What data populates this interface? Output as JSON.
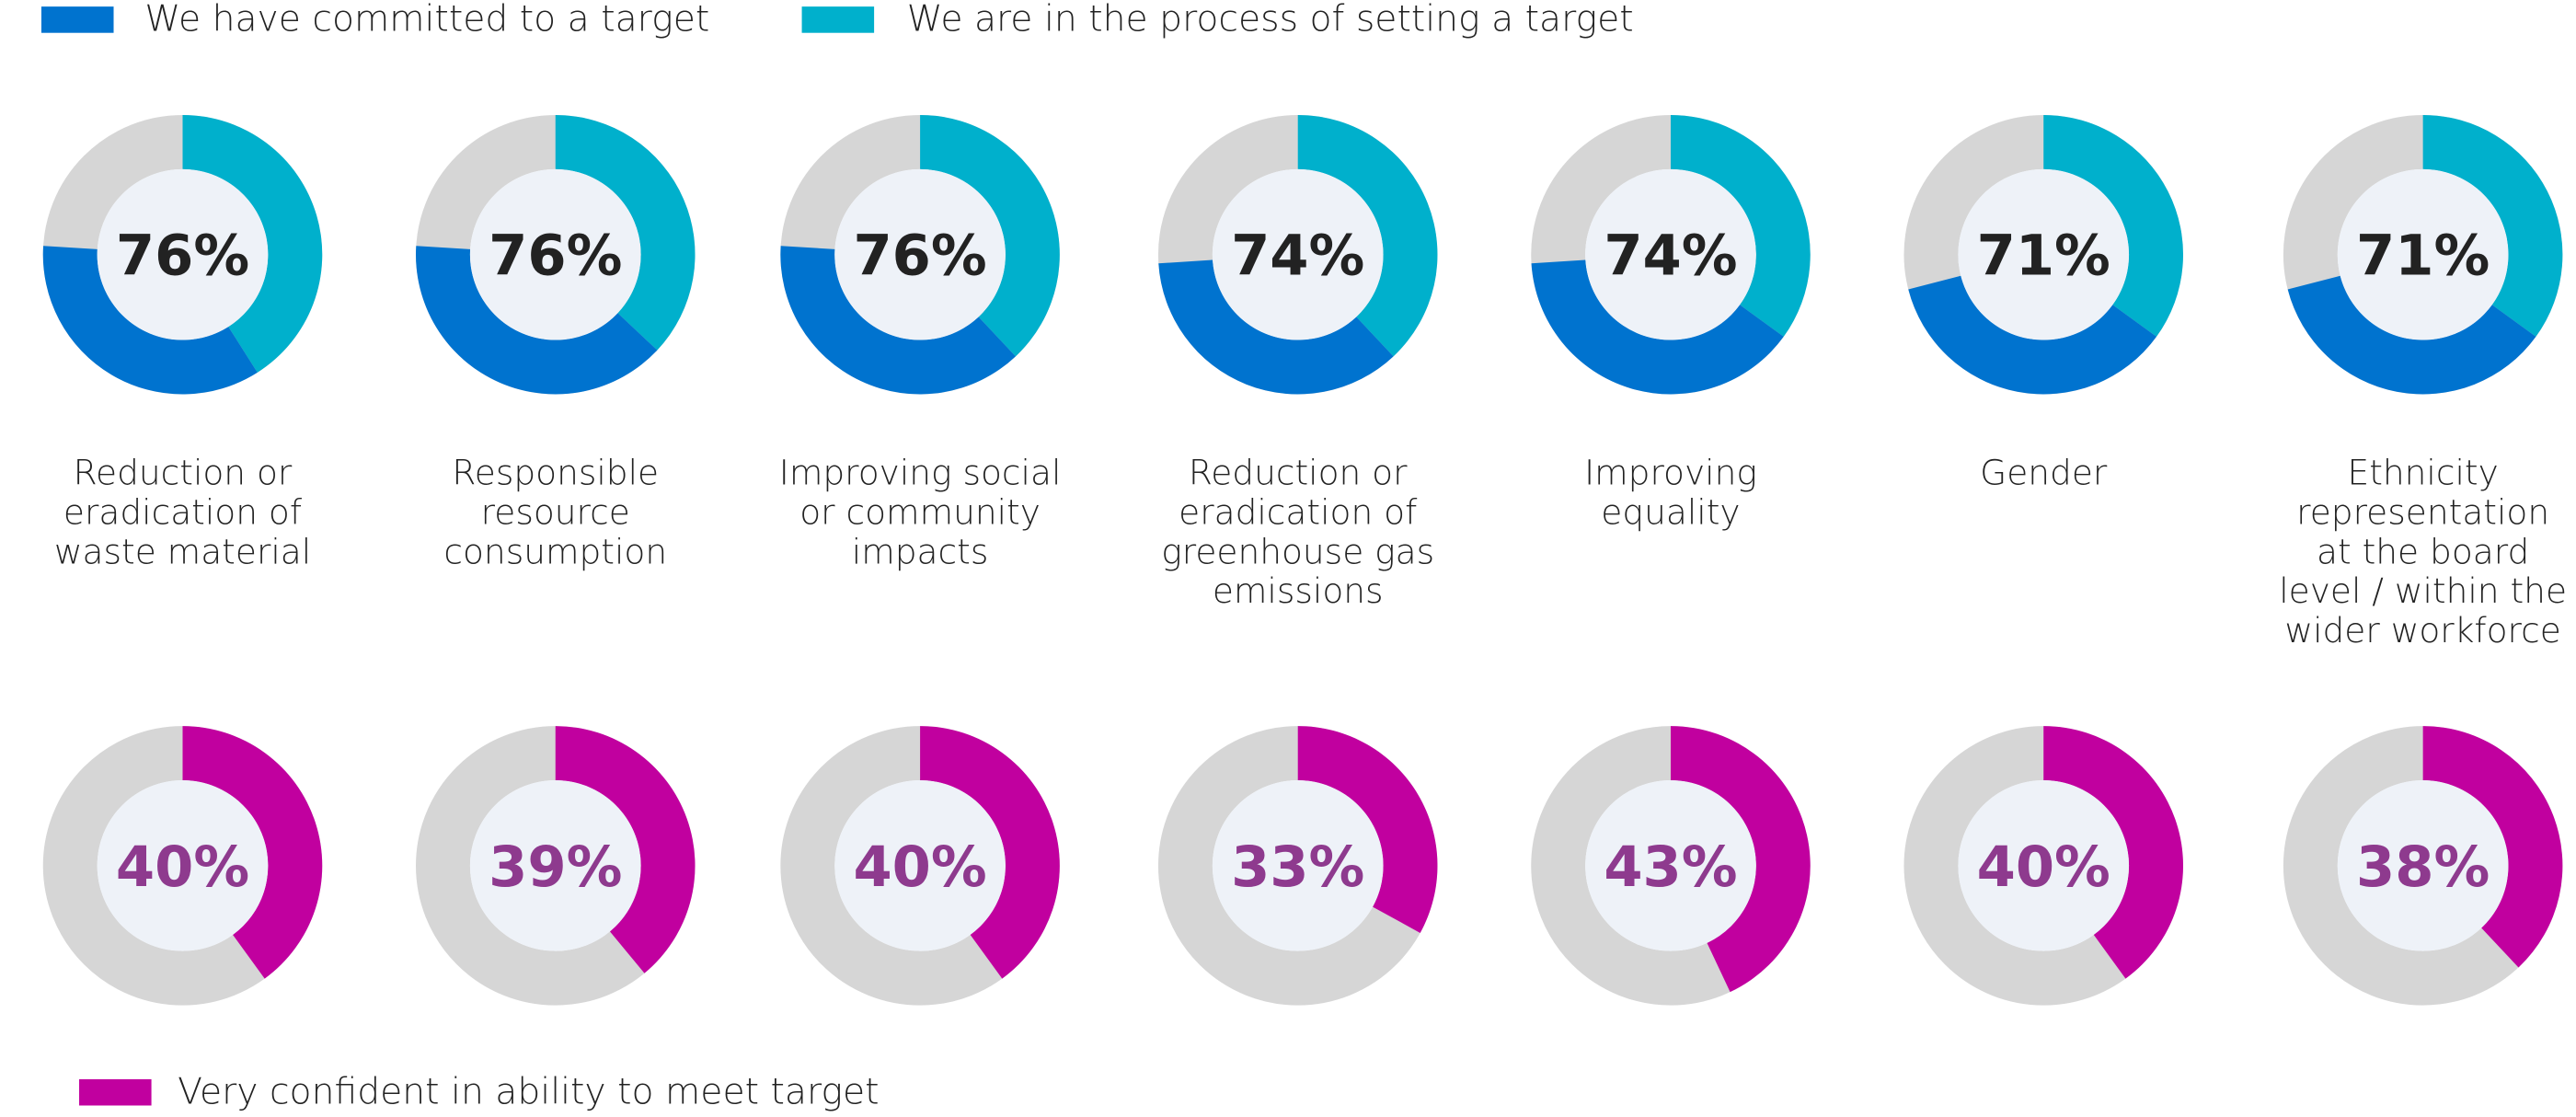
{
  "chart_data": [
    {
      "type": "donut",
      "categories": [
        "Reduction or eradication of waste material",
        "Responsible resource consumption",
        "Improving social or community impacts",
        "Reduction or eradication of greenhouse gas emissions",
        "Improving equality",
        "Gender",
        "Ethnicity representation at the board level / within the wider workforce"
      ],
      "series": [
        {
          "name": "We have committed  to a target",
          "color": "#0073cf",
          "values": [
            35,
            39,
            38,
            36,
            39,
            36,
            36
          ]
        },
        {
          "name": "We are in the process  of setting a target",
          "color": "#00b0cc",
          "values": [
            41,
            37,
            38,
            38,
            35,
            35,
            35
          ]
        }
      ],
      "totals": [
        76,
        76,
        76,
        74,
        74,
        71,
        71
      ],
      "total_labels": [
        "76%",
        "76%",
        "76%",
        "74%",
        "74%",
        "71%",
        "71%"
      ],
      "ylim": [
        0,
        100
      ],
      "remainder_color": "#d6d6d6",
      "label_color": "#222222"
    },
    {
      "type": "donut",
      "series": [
        {
          "name": "Very confident in ability to meet target",
          "color": "#c1009f",
          "values": [
            40,
            39,
            40,
            33,
            43,
            40,
            38
          ],
          "value_labels": [
            "40%",
            "39%",
            "40%",
            "33%",
            "43%",
            "40%",
            "38%"
          ]
        }
      ],
      "ylim": [
        0,
        100
      ],
      "remainder_color": "#d6d6d6",
      "label_color": "#8e3a8e"
    }
  ]
}
